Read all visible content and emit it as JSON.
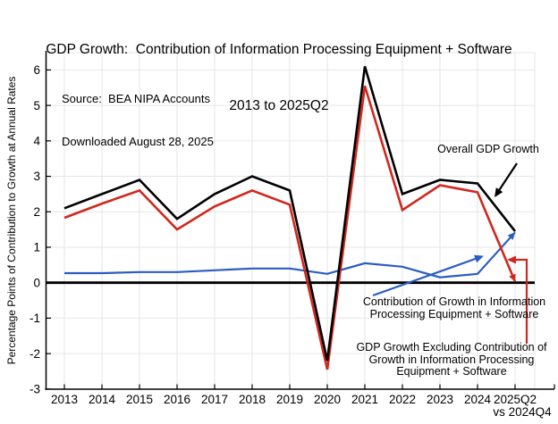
{
  "title": {
    "line1": "GDP Growth:  Contribution of Information Processing Equipment + Software",
    "line2": "2013 to 2025Q2"
  },
  "source": {
    "line1": "Source:  BEA NIPA Accounts",
    "line2": "Downloaded August 28, 2025"
  },
  "y_axis": {
    "label": "Percentage Points of Contribution to Growth at Annual Rates",
    "ticks": [
      6,
      5,
      4,
      3,
      2,
      1,
      0,
      -1,
      -2,
      -3
    ]
  },
  "x_axis": {
    "sub_label": "vs 2024Q4"
  },
  "annotations": {
    "overall": {
      "text": "Overall GDP Growth"
    },
    "contribution": {
      "line1": "Contribution of Growth in Information",
      "line2": "Processing Equipment + Software"
    },
    "excluding": {
      "line1": "GDP Growth Excluding Contribution of",
      "line2": "Growth in Information Processing",
      "line3": "Equipment + Software"
    }
  },
  "colors": {
    "overall": "#000000",
    "excluding": "#d0281e",
    "contribution": "#2a5cc4",
    "grid": "#e4e6e9",
    "axis": "#000000"
  },
  "chart_data": {
    "type": "line",
    "title": "GDP Growth: Contribution of Information Processing Equipment + Software, 2013 to 2025Q2",
    "xlabel": "",
    "ylabel": "Percentage Points of Contribution to Growth at Annual Rates",
    "ylim": [
      -3,
      6
    ],
    "grid": true,
    "legend_position": "inline-annotations",
    "categories": [
      "2013",
      "2014",
      "2015",
      "2016",
      "2017",
      "2018",
      "2019",
      "2020",
      "2021",
      "2022",
      "2023",
      "2024",
      "2025Q2"
    ],
    "last_category_note": "vs 2024Q4",
    "series": [
      {
        "name": "Overall GDP Growth",
        "color": "#000000",
        "values": [
          2.1,
          2.5,
          2.9,
          1.8,
          2.5,
          3.0,
          2.6,
          -2.2,
          6.1,
          2.5,
          2.9,
          2.8,
          1.45
        ]
      },
      {
        "name": "GDP Growth Excluding Contribution of Growth in Information Processing Equipment + Software",
        "color": "#d0281e",
        "values": [
          1.83,
          2.23,
          2.6,
          1.5,
          2.15,
          2.6,
          2.2,
          -2.45,
          5.55,
          2.05,
          2.75,
          2.55,
          0.03
        ]
      },
      {
        "name": "Contribution of Growth in Information Processing Equipment + Software",
        "color": "#2a5cc4",
        "values": [
          0.27,
          0.27,
          0.3,
          0.3,
          0.35,
          0.4,
          0.4,
          0.25,
          0.55,
          0.45,
          0.15,
          0.25,
          1.42
        ]
      }
    ]
  }
}
